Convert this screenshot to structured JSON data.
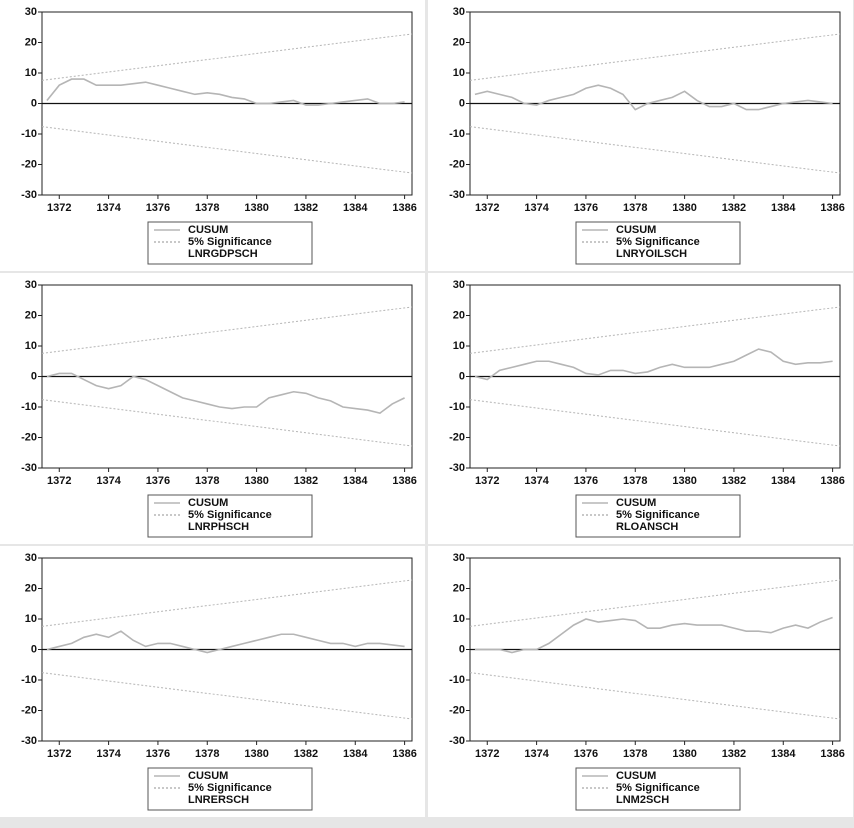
{
  "chart_data": [
    {
      "type": "line",
      "label": "LNRGDPSCH",
      "x": [
        1371.5,
        1372,
        1372.5,
        1373,
        1373.5,
        1374,
        1374.5,
        1375,
        1375.5,
        1376,
        1376.5,
        1377,
        1377.5,
        1378,
        1378.5,
        1379,
        1379.5,
        1380,
        1380.5,
        1381,
        1381.5,
        1382,
        1382.5,
        1383,
        1383.5,
        1384,
        1384.5,
        1385,
        1385.5,
        1386
      ],
      "series": [
        {
          "name": "CUSUM",
          "color": "#b5b5b5",
          "values": [
            1,
            6,
            8,
            8,
            6,
            6,
            6,
            6.5,
            7,
            6,
            5,
            4,
            3,
            3.5,
            3,
            2,
            1.5,
            0,
            0,
            0.5,
            1,
            -0.5,
            -0.5,
            0,
            0.5,
            1,
            1.5,
            0,
            0,
            0.5
          ]
        },
        {
          "name": "5% Significance",
          "color": "#b5b5b5",
          "dash": true,
          "x": [
            1371.3,
            1386.3
          ],
          "values": [
            7.6,
            22.8
          ],
          "lower": [
            -7.6,
            -22.8
          ]
        }
      ],
      "xlim": [
        1371.3,
        1386.3
      ],
      "xticks": [
        1372,
        1374,
        1376,
        1378,
        1380,
        1382,
        1384,
        1386
      ],
      "ylim": [
        -30,
        30
      ],
      "yticks": [
        -30,
        -20,
        -10,
        0,
        10,
        20,
        30
      ],
      "zero_line": true
    },
    {
      "type": "line",
      "label": "LNRYOILSCH",
      "x": [
        1371.5,
        1372,
        1372.5,
        1373,
        1373.5,
        1374,
        1374.5,
        1375,
        1375.5,
        1376,
        1376.5,
        1377,
        1377.5,
        1378,
        1378.5,
        1379,
        1379.5,
        1380,
        1380.5,
        1381,
        1381.5,
        1382,
        1382.5,
        1383,
        1383.5,
        1384,
        1384.5,
        1385,
        1385.5,
        1386
      ],
      "series": [
        {
          "name": "CUSUM",
          "color": "#b5b5b5",
          "values": [
            3,
            4,
            3,
            2,
            0,
            -0.5,
            1,
            2,
            3,
            5,
            6,
            5,
            3,
            -2,
            0,
            1,
            2,
            4,
            1,
            -1,
            -1,
            0,
            -2,
            -2,
            -1,
            0,
            0.5,
            1,
            0.5,
            0
          ]
        },
        {
          "name": "5% Significance",
          "color": "#b5b5b5",
          "dash": true,
          "x": [
            1371.3,
            1386.3
          ],
          "values": [
            7.6,
            22.8
          ],
          "lower": [
            -7.6,
            -22.8
          ]
        }
      ],
      "xlim": [
        1371.3,
        1386.3
      ],
      "xticks": [
        1372,
        1374,
        1376,
        1378,
        1380,
        1382,
        1384,
        1386
      ],
      "ylim": [
        -30,
        30
      ],
      "yticks": [
        -30,
        -20,
        -10,
        0,
        10,
        20,
        30
      ],
      "zero_line": true
    },
    {
      "type": "line",
      "label": "LNRPHSCH",
      "x": [
        1371.5,
        1372,
        1372.5,
        1373,
        1373.5,
        1374,
        1374.5,
        1375,
        1375.5,
        1376,
        1376.5,
        1377,
        1377.5,
        1378,
        1378.5,
        1379,
        1379.5,
        1380,
        1380.5,
        1381,
        1381.5,
        1382,
        1382.5,
        1383,
        1383.5,
        1384,
        1384.5,
        1385,
        1385.5,
        1386
      ],
      "series": [
        {
          "name": "CUSUM",
          "color": "#b5b5b5",
          "values": [
            0,
            1,
            1,
            -1,
            -3,
            -4,
            -3,
            0,
            -1,
            -3,
            -5,
            -7,
            -8,
            -9,
            -10,
            -10.5,
            -10,
            -10,
            -7,
            -6,
            -5,
            -5.5,
            -7,
            -8,
            -10,
            -10.5,
            -11,
            -12,
            -9,
            -7
          ]
        },
        {
          "name": "5% Significance",
          "color": "#b5b5b5",
          "dash": true,
          "x": [
            1371.3,
            1386.3
          ],
          "values": [
            7.6,
            22.8
          ],
          "lower": [
            -7.6,
            -22.8
          ]
        }
      ],
      "xlim": [
        1371.3,
        1386.3
      ],
      "xticks": [
        1372,
        1374,
        1376,
        1378,
        1380,
        1382,
        1384,
        1386
      ],
      "ylim": [
        -30,
        30
      ],
      "yticks": [
        -30,
        -20,
        -10,
        0,
        10,
        20,
        30
      ],
      "zero_line": true
    },
    {
      "type": "line",
      "label": "RLOANSCH",
      "x": [
        1371.5,
        1372,
        1372.5,
        1373,
        1373.5,
        1374,
        1374.5,
        1375,
        1375.5,
        1376,
        1376.5,
        1377,
        1377.5,
        1378,
        1378.5,
        1379,
        1379.5,
        1380,
        1380.5,
        1381,
        1381.5,
        1382,
        1382.5,
        1383,
        1383.5,
        1384,
        1384.5,
        1385,
        1385.5,
        1386
      ],
      "series": [
        {
          "name": "CUSUM",
          "color": "#b5b5b5",
          "values": [
            0,
            -1,
            2,
            3,
            4,
            5,
            5,
            4,
            3,
            1,
            0.5,
            2,
            2,
            1,
            1.5,
            3,
            4,
            3,
            3,
            3,
            4,
            5,
            7,
            9,
            8,
            5,
            4,
            4.5,
            4.5,
            5
          ]
        },
        {
          "name": "5% Significance",
          "color": "#b5b5b5",
          "dash": true,
          "x": [
            1371.3,
            1386.3
          ],
          "values": [
            7.6,
            22.8
          ],
          "lower": [
            -7.6,
            -22.8
          ]
        }
      ],
      "xlim": [
        1371.3,
        1386.3
      ],
      "xticks": [
        1372,
        1374,
        1376,
        1378,
        1380,
        1382,
        1384,
        1386
      ],
      "ylim": [
        -30,
        30
      ],
      "yticks": [
        -30,
        -20,
        -10,
        0,
        10,
        20,
        30
      ],
      "zero_line": true
    },
    {
      "type": "line",
      "label": "LNRERSCH",
      "x": [
        1371.5,
        1372,
        1372.5,
        1373,
        1373.5,
        1374,
        1374.5,
        1375,
        1375.5,
        1376,
        1376.5,
        1377,
        1377.5,
        1378,
        1378.5,
        1379,
        1379.5,
        1380,
        1380.5,
        1381,
        1381.5,
        1382,
        1382.5,
        1383,
        1383.5,
        1384,
        1384.5,
        1385,
        1385.5,
        1386
      ],
      "series": [
        {
          "name": "CUSUM",
          "color": "#b5b5b5",
          "values": [
            0,
            1,
            2,
            4,
            5,
            4,
            6,
            3,
            1,
            2,
            2,
            1,
            0,
            -1,
            0,
            1,
            2,
            3,
            4,
            5,
            5,
            4,
            3,
            2,
            2,
            1,
            2,
            2,
            1.5,
            1
          ]
        },
        {
          "name": "5% Significance",
          "color": "#b5b5b5",
          "dash": true,
          "x": [
            1371.3,
            1386.3
          ],
          "values": [
            7.6,
            22.8
          ],
          "lower": [
            -7.6,
            -22.8
          ]
        }
      ],
      "xlim": [
        1371.3,
        1386.3
      ],
      "xticks": [
        1372,
        1374,
        1376,
        1378,
        1380,
        1382,
        1384,
        1386
      ],
      "ylim": [
        -30,
        30
      ],
      "yticks": [
        -30,
        -20,
        -10,
        0,
        10,
        20,
        30
      ],
      "zero_line": true
    },
    {
      "type": "line",
      "label": "LNM2SCH",
      "x": [
        1371.5,
        1372,
        1372.5,
        1373,
        1373.5,
        1374,
        1374.5,
        1375,
        1375.5,
        1376,
        1376.5,
        1377,
        1377.5,
        1378,
        1378.5,
        1379,
        1379.5,
        1380,
        1380.5,
        1381,
        1381.5,
        1382,
        1382.5,
        1383,
        1383.5,
        1384,
        1384.5,
        1385,
        1385.5,
        1386
      ],
      "series": [
        {
          "name": "CUSUM",
          "color": "#b5b5b5",
          "values": [
            0,
            0,
            0,
            -1,
            0,
            0,
            2,
            5,
            8,
            10,
            9,
            9.5,
            10,
            9.5,
            7,
            7,
            8,
            8.5,
            8,
            8,
            8,
            7,
            6,
            6,
            5.5,
            7,
            8,
            7,
            9,
            10.5
          ]
        },
        {
          "name": "5% Significance",
          "color": "#b5b5b5",
          "dash": true,
          "x": [
            1371.3,
            1386.3
          ],
          "values": [
            7.6,
            22.8
          ],
          "lower": [
            -7.6,
            -22.8
          ]
        }
      ],
      "xlim": [
        1371.3,
        1386.3
      ],
      "xticks": [
        1372,
        1374,
        1376,
        1378,
        1380,
        1382,
        1384,
        1386
      ],
      "ylim": [
        -30,
        30
      ],
      "yticks": [
        -30,
        -20,
        -10,
        0,
        10,
        20,
        30
      ],
      "zero_line": true
    }
  ]
}
